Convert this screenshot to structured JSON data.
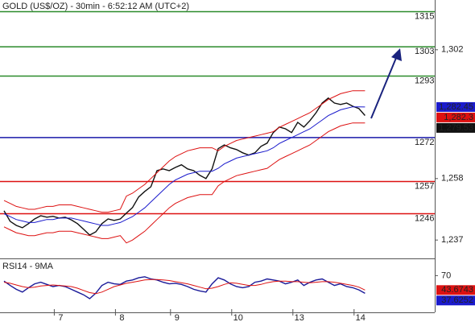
{
  "chart_data": [
    {
      "type": "line",
      "title": "GOLD (US$/OZ) - 30min - 6:52:12 AM (UTC+2)",
      "categories": [
        null,
        null,
        null,
        null,
        null,
        null,
        null,
        null,
        null,
        "7",
        null,
        null,
        null,
        null,
        null,
        null,
        null,
        null,
        null,
        "8",
        null,
        null,
        null,
        null,
        null,
        null,
        null,
        null,
        "9",
        null,
        null,
        null,
        null,
        null,
        null,
        null,
        null,
        null,
        "10",
        null,
        null,
        null,
        null,
        null,
        null,
        null,
        null,
        null,
        "13",
        null,
        null,
        null,
        null,
        null,
        null,
        null,
        null,
        null,
        "14",
        null
      ],
      "series": [
        {
          "color": "#111111",
          "values": [
            1247.0,
            1243.4,
            1242.0,
            1241.2,
            1242.6,
            1244.2,
            1245.3,
            1244.8,
            1245.1,
            1244.5,
            1244.8,
            1243.9,
            1242.6,
            1240.7,
            1238.7,
            1239.8,
            1242.6,
            1244.2,
            1243.7,
            1244.2,
            1246.2,
            1248.1,
            1251.7,
            1253.6,
            1255.2,
            1260.7,
            1261.3,
            1260.7,
            1261.8,
            1262.7,
            1261.3,
            1260.7,
            1259.1,
            1258.0,
            1261.3,
            1268.2,
            1269.5,
            1268.5,
            1267.9,
            1266.8,
            1266.0,
            1266.8,
            1269.0,
            1270.1,
            1273.7,
            1275.6,
            1275.0,
            1273.7,
            1277.2,
            1275.6,
            1277.8,
            1280.5,
            1283.8,
            1285.5,
            1283.8,
            1283.3,
            1283.8,
            1282.7,
            1281.9,
            1279.53
          ]
        },
        {
          "color": "#1a1acc",
          "values": [
            1246,
            1245,
            1244,
            1243.5,
            1243,
            1243,
            1243.5,
            1244,
            1244,
            1244.5,
            1244.5,
            1244.5,
            1244,
            1243.5,
            1243,
            1242.5,
            1242,
            1242,
            1242.5,
            1243,
            1244,
            1245,
            1246.5,
            1248,
            1250,
            1252,
            1254,
            1256,
            1257.5,
            1258.5,
            1259.5,
            1260,
            1260.5,
            1260.5,
            1260.5,
            1261.5,
            1263,
            1264,
            1265,
            1265.5,
            1266,
            1266.5,
            1267,
            1267.5,
            1268.5,
            1270,
            1271,
            1272,
            1273,
            1274,
            1275,
            1276.5,
            1278,
            1279.5,
            1280.5,
            1281.5,
            1282,
            1282.5,
            1282.5,
            1282.45
          ]
        },
        {
          "color": "#dd1111",
          "values": [
            1250.5,
            1249.5,
            1248.5,
            1248,
            1247.5,
            1247.5,
            1248,
            1248.5,
            1248.5,
            1249,
            1249,
            1249,
            1248.5,
            1248,
            1247.5,
            1247,
            1246.5,
            1246.5,
            1247,
            1247.5,
            1252,
            1253,
            1254.5,
            1256,
            1258,
            1260,
            1262,
            1264,
            1265.5,
            1266.5,
            1267.5,
            1268,
            1268.5,
            1268.5,
            1268.5,
            1267.5,
            1269,
            1270,
            1271,
            1271.5,
            1272,
            1272.5,
            1273,
            1273.5,
            1274,
            1275.5,
            1276.5,
            1277.5,
            1278.5,
            1279.5,
            1280.5,
            1282,
            1283.5,
            1285,
            1286,
            1287,
            1287.5,
            1288,
            1288,
            1288
          ]
        },
        {
          "color": "#dd1111",
          "values": [
            1241.5,
            1240.5,
            1239.5,
            1239,
            1238.5,
            1238.5,
            1239,
            1239.5,
            1239.5,
            1240,
            1240,
            1240,
            1239.5,
            1239,
            1238.5,
            1238,
            1237.5,
            1237.5,
            1238,
            1238.5,
            1236,
            1237,
            1238.5,
            1240,
            1242,
            1244,
            1246,
            1248,
            1249.5,
            1250.5,
            1251.5,
            1252,
            1252.5,
            1252.5,
            1252.5,
            1255.5,
            1257,
            1258,
            1259,
            1259.5,
            1260,
            1260.5,
            1261,
            1261.5,
            1263,
            1264.5,
            1265.5,
            1266.5,
            1267.5,
            1268.5,
            1269.5,
            1271,
            1272.5,
            1274,
            1275,
            1276,
            1276.5,
            1277,
            1277,
            1277
          ]
        }
      ],
      "ylim": [
        1231,
        1319
      ],
      "yticks": [
        {
          "value": 1302,
          "label": "1,302"
        },
        {
          "value": 1258,
          "label": "1,258"
        },
        {
          "value": 1237,
          "label": "1,237"
        }
      ],
      "levels": [
        {
          "value": 1315,
          "color": "#2a8a2a"
        },
        {
          "value": 1303,
          "color": "#2a8a2a"
        },
        {
          "value": 1293,
          "color": "#2a8a2a"
        },
        {
          "value": 1272,
          "color": "#1a1aaa"
        },
        {
          "value": 1257,
          "color": "#dd1111"
        },
        {
          "value": 1246,
          "color": "#dd1111"
        }
      ],
      "price_labels": [
        {
          "value": 1282.45,
          "label": "1,282.45",
          "color": "#1a1acc"
        },
        {
          "value": 1282.3,
          "label": "1,282.3",
          "color": "#dd1111"
        },
        {
          "value": 1279.53,
          "label": "1,279.53",
          "color": "#111111"
        }
      ]
    },
    {
      "type": "line",
      "title": "RSI14 - 9MA",
      "series": [
        {
          "color": "#1a1a99",
          "values": [
            60,
            52,
            45,
            40,
            48,
            55,
            58,
            54,
            50,
            52,
            50,
            45,
            40,
            35,
            28,
            38,
            52,
            58,
            55,
            54,
            60,
            62,
            66,
            68,
            64,
            62,
            58,
            55,
            56,
            54,
            50,
            45,
            42,
            40,
            55,
            66,
            62,
            55,
            50,
            48,
            50,
            58,
            60,
            64,
            62,
            60,
            55,
            58,
            62,
            52,
            58,
            62,
            64,
            58,
            52,
            55,
            50,
            48,
            44,
            37.6252
          ]
        },
        {
          "color": "#dd1111",
          "values": [
            58,
            56,
            53,
            50,
            48,
            49,
            51,
            52,
            53,
            52,
            51,
            50,
            47,
            43,
            39,
            37,
            40,
            45,
            50,
            53,
            56,
            58,
            60,
            62,
            63,
            63,
            62,
            61,
            59,
            57,
            55,
            52,
            49,
            46,
            47,
            50,
            54,
            57,
            56,
            54,
            52,
            52,
            54,
            57,
            59,
            60,
            60,
            59,
            59,
            58,
            57,
            58,
            59,
            59,
            58,
            56,
            54,
            52,
            49,
            43.6743
          ]
        }
      ],
      "ylim": [
        0,
        100
      ],
      "yticks": [
        70
      ],
      "value_labels": [
        {
          "value": 43.6743,
          "color": "#dd1111"
        },
        {
          "value": 37.6252,
          "color": "#1a1acc"
        }
      ]
    }
  ]
}
